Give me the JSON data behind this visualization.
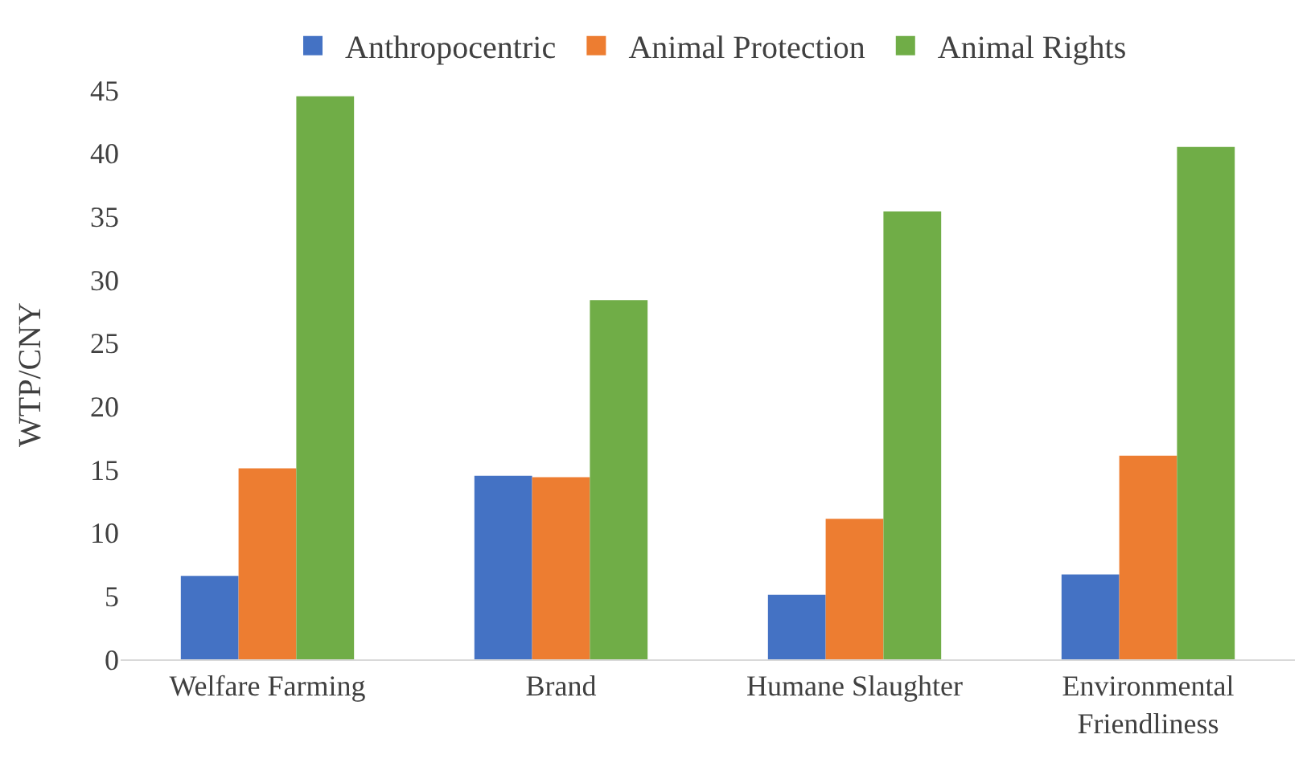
{
  "chart_data": {
    "type": "bar",
    "ylabel": "WTP/CNY",
    "categories": [
      "Welfare Farming",
      "Brand",
      "Humane Slaughter",
      "Environmental Friendliness"
    ],
    "series": [
      {
        "name": "Anthropocentric",
        "color": "#4472c4",
        "values": [
          6.6,
          14.5,
          5.1,
          6.7
        ]
      },
      {
        "name": "Animal Protection",
        "color": "#ed7d31",
        "values": [
          15.1,
          14.4,
          11.1,
          16.1
        ]
      },
      {
        "name": "Animal Rights",
        "color": "#70ad47",
        "values": [
          44.5,
          28.4,
          35.4,
          40.5
        ]
      }
    ],
    "ylim": [
      0,
      45
    ],
    "yticks": [
      0,
      5,
      10,
      15,
      20,
      25,
      30,
      35,
      40,
      45
    ],
    "grid": false,
    "legend": "top"
  }
}
